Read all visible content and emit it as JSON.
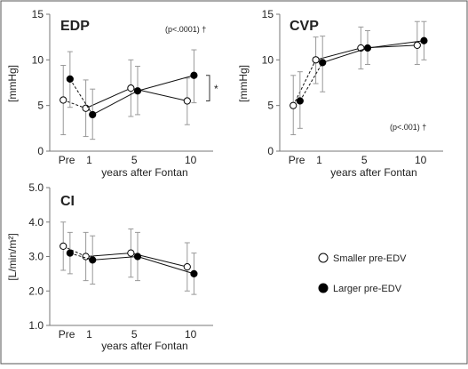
{
  "chart_data": [
    {
      "type": "line",
      "title": "EDP",
      "ylabel": "[mmHg]",
      "xlabel": "years after Fontan",
      "ylim": [
        0,
        15
      ],
      "yticks": [
        0,
        5,
        10,
        15
      ],
      "x_ticks": [
        {
          "label": "Pre",
          "x": -1
        },
        {
          "label": "1",
          "x": 1
        },
        {
          "label": "5",
          "x": 5
        },
        {
          "label": "10",
          "x": 10
        }
      ],
      "annotation": "(p<.0001) †",
      "bracket_label": "*",
      "series": [
        {
          "marker": "open",
          "points": [
            {
              "x": -1.3,
              "y": 5.6,
              "lo": 1.8,
              "hi": 9.4
            },
            {
              "x": 0.7,
              "y": 4.7,
              "lo": 1.6,
              "hi": 7.8
            },
            {
              "x": 4.7,
              "y": 6.9,
              "lo": 3.8,
              "hi": 10.0
            },
            {
              "x": 9.7,
              "y": 5.5,
              "lo": 2.9,
              "hi": 8.0
            }
          ]
        },
        {
          "marker": "filled",
          "points": [
            {
              "x": -0.7,
              "y": 7.9,
              "lo": 4.8,
              "hi": 10.9
            },
            {
              "x": 1.3,
              "y": 4.0,
              "lo": 1.3,
              "hi": 6.8
            },
            {
              "x": 5.3,
              "y": 6.6,
              "lo": 4.0,
              "hi": 9.3
            },
            {
              "x": 10.3,
              "y": 8.3,
              "lo": 5.3,
              "hi": 11.1
            }
          ]
        }
      ]
    },
    {
      "type": "line",
      "title": "CVP",
      "ylabel": "[mmHg]",
      "xlabel": "years after Fontan",
      "ylim": [
        0,
        15
      ],
      "yticks": [
        0,
        5,
        10,
        15
      ],
      "x_ticks": [
        {
          "label": "Pre",
          "x": -1
        },
        {
          "label": "1",
          "x": 1
        },
        {
          "label": "5",
          "x": 5
        },
        {
          "label": "10",
          "x": 10
        }
      ],
      "annotation": "(p<.001) †",
      "series": [
        {
          "marker": "open",
          "points": [
            {
              "x": -1.3,
              "y": 5.0,
              "lo": 1.8,
              "hi": 8.3
            },
            {
              "x": 0.7,
              "y": 10.0,
              "lo": 7.4,
              "hi": 12.5
            },
            {
              "x": 4.7,
              "y": 11.3,
              "lo": 9.0,
              "hi": 13.6
            },
            {
              "x": 9.7,
              "y": 11.6,
              "lo": 9.5,
              "hi": 14.2
            }
          ]
        },
        {
          "marker": "filled",
          "points": [
            {
              "x": -0.7,
              "y": 5.5,
              "lo": 2.5,
              "hi": 8.7
            },
            {
              "x": 1.3,
              "y": 9.7,
              "lo": 6.5,
              "hi": 12.6
            },
            {
              "x": 5.3,
              "y": 11.3,
              "lo": 9.5,
              "hi": 13.2
            },
            {
              "x": 10.3,
              "y": 12.1,
              "lo": 10.0,
              "hi": 14.2
            }
          ]
        }
      ]
    },
    {
      "type": "line",
      "title": "CI",
      "ylabel": "[L/min/m²]",
      "xlabel": "years after Fontan",
      "ylim": [
        1.0,
        5.0
      ],
      "yticks": [
        "1.0",
        "2.0",
        "3.0",
        "4.0",
        "5.0"
      ],
      "x_ticks": [
        {
          "label": "Pre",
          "x": -1
        },
        {
          "label": "1",
          "x": 1
        },
        {
          "label": "5",
          "x": 5
        },
        {
          "label": "10",
          "x": 10
        }
      ],
      "series": [
        {
          "name": "Smaller pre-EDV",
          "marker": "open",
          "points": [
            {
              "x": -1.3,
              "y": 3.3,
              "lo": 2.6,
              "hi": 4.0
            },
            {
              "x": 0.7,
              "y": 3.0,
              "lo": 2.3,
              "hi": 3.7
            },
            {
              "x": 4.7,
              "y": 3.1,
              "lo": 2.4,
              "hi": 3.8
            },
            {
              "x": 9.7,
              "y": 2.7,
              "lo": 2.0,
              "hi": 3.4
            }
          ]
        },
        {
          "name": "Larger pre-EDV",
          "marker": "filled",
          "points": [
            {
              "x": -0.7,
              "y": 3.1,
              "lo": 2.5,
              "hi": 3.7
            },
            {
              "x": 1.3,
              "y": 2.9,
              "lo": 2.2,
              "hi": 3.6
            },
            {
              "x": 5.3,
              "y": 3.0,
              "lo": 2.3,
              "hi": 3.7
            },
            {
              "x": 10.3,
              "y": 2.5,
              "lo": 1.9,
              "hi": 3.1
            }
          ]
        }
      ]
    }
  ],
  "legend": [
    {
      "label": "Smaller pre-EDV",
      "marker": "open"
    },
    {
      "label": "Larger pre-EDV",
      "marker": "filled"
    }
  ]
}
